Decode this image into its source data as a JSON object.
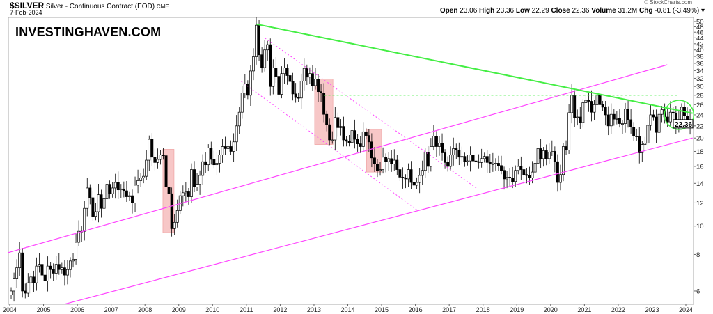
{
  "header": {
    "symbol": "$SILVER",
    "name": "Silver - Continuous Contract (EOD)",
    "exchange": "CME",
    "date": "7-Feb-2024",
    "copyright": "© StockCharts.com",
    "open_label": "Open",
    "open": "23.06",
    "high_label": "High",
    "high": "23.36",
    "low_label": "Low",
    "low": "22.29",
    "close_label": "Close",
    "close": "22.36",
    "volume_label": "Volume",
    "volume": "31.2M",
    "chg_label": "Chg",
    "chg": "-0.81 (-3.49%)",
    "dropdown_icon": "caret-down-icon"
  },
  "watermark": "INVESTINGHAVEN.COM",
  "chart_data": {
    "type": "candlestick",
    "scale": "log",
    "ylim": [
      5.0,
      51
    ],
    "xlim": [
      2004.0,
      2024.25
    ],
    "x_start": "2004-01",
    "interval": "monthly",
    "yticks": [
      6,
      8,
      10,
      12,
      14,
      16,
      18,
      20,
      22,
      24,
      26,
      28,
      30,
      32,
      34,
      36,
      38,
      40,
      42,
      44,
      46,
      48,
      50
    ],
    "xticks": [
      "2004",
      "2005",
      "2006",
      "2007",
      "2008",
      "2009",
      "2010",
      "2011",
      "2012",
      "2013",
      "2014",
      "2015",
      "2016",
      "2017",
      "2018",
      "2019",
      "2020",
      "2021",
      "2022",
      "2023",
      "2024"
    ],
    "last_price": "22.36",
    "closes": [
      6.0,
      6.6,
      7.2,
      8.1,
      6.0,
      5.9,
      6.4,
      6.7,
      6.4,
      7.3,
      7.4,
      6.8,
      6.5,
      7.3,
      7.1,
      6.9,
      7.4,
      7.1,
      7.2,
      6.8,
      7.1,
      7.6,
      7.7,
      8.8,
      9.6,
      9.6,
      11.5,
      13.5,
      12.5,
      10.8,
      11.2,
      12.8,
      11.5,
      12.4,
      13.9,
      12.9,
      13.5,
      14.1,
      13.3,
      13.4,
      13.2,
      12.6,
      12.7,
      12.0,
      13.8,
      14.3,
      14.6,
      14.8,
      16.8,
      19.8,
      17.2,
      16.5,
      16.9,
      17.5,
      17.4,
      13.6,
      12.9,
      9.8,
      10.3,
      11.3,
      12.7,
      13.0,
      13.1,
      12.6,
      15.6,
      13.6,
      13.9,
      14.9,
      16.6,
      16.2,
      18.5,
      16.9,
      16.2,
      16.4,
      17.5,
      18.7,
      18.4,
      18.7,
      18.0,
      19.4,
      22.0,
      24.5,
      28.5,
      30.6,
      28.0,
      33.9,
      37.9,
      48.6,
      38.5,
      34.8,
      40.0,
      41.7,
      30.0,
      34.7,
      32.5,
      28.2,
      33.2,
      34.7,
      32.7,
      31.2,
      28.3,
      27.5,
      27.4,
      31.3,
      34.6,
      32.3,
      33.2,
      30.2,
      31.8,
      28.8,
      28.5,
      24.1,
      22.2,
      19.7,
      19.7,
      23.5,
      21.7,
      21.9,
      19.7,
      19.5,
      19.3,
      21.2,
      19.8,
      19.1,
      18.7,
      21.0,
      20.4,
      19.4,
      17.1,
      16.3,
      15.5,
      15.6,
      17.2,
      16.6,
      17.0,
      16.3,
      16.8,
      15.6,
      14.7,
      14.6,
      14.5,
      15.6,
      14.1,
      13.8,
      14.1,
      14.9,
      15.5,
      17.9,
      16.0,
      18.7,
      20.3,
      18.7,
      19.2,
      17.8,
      16.5,
      16.0,
      17.5,
      18.4,
      18.2,
      17.2,
      17.3,
      16.6,
      16.7,
      17.5,
      16.7,
      16.6,
      16.5,
      17.0,
      17.3,
      16.5,
      16.3,
      16.3,
      16.4,
      16.1,
      15.5,
      14.5,
      14.7,
      14.6,
      14.2,
      15.5,
      16.0,
      15.6,
      15.0,
      14.9,
      14.6,
      15.3,
      16.4,
      18.4,
      17.0,
      18.1,
      17.0,
      17.9,
      18.0,
      16.6,
      14.1,
      15.0,
      18.7,
      18.2,
      24.4,
      28.0,
      23.5,
      23.6,
      22.6,
      26.4,
      26.9,
      26.7,
      24.5,
      26.0,
      28.0,
      26.0,
      25.5,
      24.0,
      22.0,
      24.1,
      23.2,
      23.3,
      22.4,
      22.4,
      25.1,
      23.1,
      21.8,
      20.3,
      20.2,
      17.8,
      19.0,
      19.2,
      22.1,
      24.0,
      23.6,
      20.9,
      24.1,
      25.0,
      23.6,
      22.7,
      24.5,
      24.3,
      22.2,
      22.9,
      25.5,
      23.8,
      23.0,
      22.36
    ],
    "annotations": {
      "colors": {
        "trend": "#44ee44",
        "channel": "#ff44ff",
        "highlight": "#f4b4b4",
        "candle": "#000000"
      },
      "downtrend": {
        "from": [
          2011.3,
          49
        ],
        "to": [
          2024.2,
          24.3
        ]
      },
      "resistance_dashed": {
        "price": 28,
        "from": 2013.3,
        "to": 2023.8
      },
      "upper_channel": {
        "from": [
          2003.7,
          7.96
        ],
        "to": [
          2023.45,
          35.6
        ]
      },
      "lower_channel": {
        "from": [
          2004.5,
          5.0
        ],
        "to": [
          2024.2,
          20.0
        ]
      },
      "dotted_channel_upper": {
        "from": [
          2011.55,
          43.9
        ],
        "to": [
          2017.8,
          13.5
        ]
      },
      "dotted_channel_lower": {
        "from": [
          2010.85,
          31.2
        ],
        "to": [
          2016.07,
          11.3
        ]
      },
      "highlight_boxes": [
        {
          "x": [
            2008.53,
            2008.86
          ],
          "y": [
            9.5,
            18.3
          ]
        },
        {
          "x": [
            2013.02,
            2013.56
          ],
          "y": [
            19.0,
            31.8
          ]
        },
        {
          "x": [
            2014.55,
            2015.0
          ],
          "y": [
            15.3,
            21.4
          ]
        }
      ],
      "circle_center": [
        2023.8,
        24
      ]
    }
  }
}
